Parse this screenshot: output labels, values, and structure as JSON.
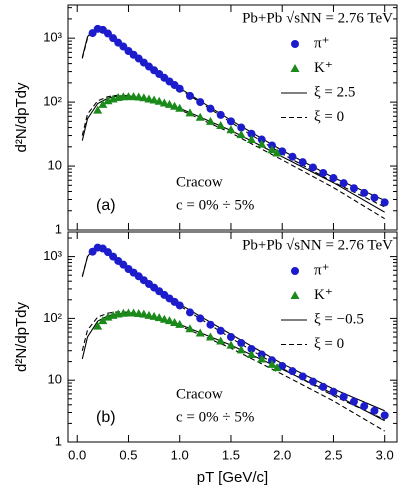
{
  "chart_data": [
    {
      "type": "scatter",
      "panel_label": "(a)",
      "y_label": "d²N/dpTdy",
      "ylog": true,
      "ylim": [
        1,
        3300
      ],
      "xlim": [
        -0.09,
        3.12
      ],
      "yticks": [
        1,
        10,
        {
          "value": 100,
          "label": "10²"
        },
        {
          "value": 1000,
          "label": "10³"
        }
      ],
      "xticks": [
        0,
        0.5,
        1,
        1.5,
        2,
        2.5,
        3
      ],
      "legend_title": "Pb+Pb √sNN = 2.76 TeV",
      "legend": "upper right",
      "annotations": [
        "Cracow",
        "c = 0% ÷ 5%"
      ],
      "series": [
        {
          "name": "π⁺",
          "marker": "circle",
          "color": "#1c1ccc",
          "x": [
            0.15,
            0.2,
            0.25,
            0.3,
            0.35,
            0.4,
            0.45,
            0.5,
            0.55,
            0.6,
            0.65,
            0.7,
            0.75,
            0.8,
            0.85,
            0.9,
            0.95,
            1.0,
            1.1,
            1.2,
            1.3,
            1.4,
            1.5,
            1.6,
            1.7,
            1.8,
            1.9,
            2.0,
            2.1,
            2.2,
            2.3,
            2.4,
            2.5,
            2.6,
            2.7,
            2.8,
            2.9,
            3.0
          ],
          "values": [
            1200,
            1400,
            1350,
            1180,
            1000,
            850,
            740,
            630,
            550,
            480,
            415,
            360,
            315,
            275,
            240,
            210,
            185,
            162,
            125,
            100,
            79,
            63,
            50,
            40,
            32,
            26,
            21,
            17,
            14,
            11.5,
            9.5,
            7.8,
            6.5,
            5.4,
            4.5,
            3.8,
            3.2,
            2.7
          ]
        },
        {
          "name": "K⁺",
          "marker": "triangle",
          "color": "#1a8a1a",
          "x": [
            0.2,
            0.25,
            0.3,
            0.35,
            0.4,
            0.45,
            0.5,
            0.55,
            0.6,
            0.65,
            0.7,
            0.75,
            0.8,
            0.85,
            0.9,
            0.95,
            1.0,
            1.1,
            1.2,
            1.3,
            1.4,
            1.5,
            1.6,
            1.7,
            1.8,
            1.9,
            1.95
          ],
          "values": [
            75,
            92,
            105,
            112,
            118,
            121,
            122,
            122,
            120,
            117,
            112,
            108,
            103,
            97,
            92,
            86,
            80,
            68,
            58,
            50,
            43,
            37,
            31,
            26,
            22,
            18,
            16
          ]
        },
        {
          "name": "ξ = 2.5",
          "line_style": "solid",
          "color": "#000000",
          "x": [
            0.05,
            0.1,
            0.15,
            0.2,
            0.3,
            0.4,
            0.5,
            0.7,
            1,
            1.5,
            2,
            2.5,
            3
          ],
          "values": [
            500,
            1050,
            1300,
            1380,
            1180,
            860,
            640,
            370,
            165,
            52,
            17.5,
            6.6,
            2.9
          ]
        },
        {
          "line_style": "solid",
          "color": "#000000",
          "x": [
            0.05,
            0.1,
            0.2,
            0.3,
            0.4,
            0.5,
            0.7,
            1,
            1.5,
            2,
            2.5,
            3
          ],
          "values": [
            25,
            55,
            95,
            115,
            125,
            125,
            110,
            80,
            36,
            14,
            5.5,
            1.9
          ]
        },
        {
          "name": "ξ = 0",
          "line_style": "dashed",
          "color": "#000000",
          "x": [
            0.05,
            0.1,
            0.15,
            0.2,
            0.3,
            0.4,
            0.5,
            0.7,
            1,
            1.5,
            2,
            2.5,
            3
          ],
          "values": [
            480,
            1000,
            1280,
            1370,
            1180,
            860,
            640,
            365,
            160,
            48,
            15.5,
            5.6,
            2.3
          ]
        },
        {
          "line_style": "dashed",
          "color": "#000000",
          "x": [
            0.05,
            0.1,
            0.2,
            0.3,
            0.4,
            0.5,
            0.7,
            1,
            1.5,
            2,
            2.5,
            3
          ],
          "values": [
            30,
            65,
            105,
            122,
            128,
            126,
            108,
            76,
            33,
            12.5,
            4.6,
            1.5
          ]
        }
      ]
    },
    {
      "type": "scatter",
      "panel_label": "(b)",
      "y_label": "d²N/dpTdy",
      "x_label": "pT [GeV/c]",
      "ylog": true,
      "ylim": [
        1,
        2500
      ],
      "xlim": [
        -0.09,
        3.12
      ],
      "yticks": [
        1,
        10,
        {
          "value": 100,
          "label": "10²"
        },
        {
          "value": 1000,
          "label": "10³"
        }
      ],
      "xticks": [
        {
          "value": 0,
          "label": "0.0"
        },
        0.5,
        {
          "value": 1,
          "label": "1.0"
        },
        1.5,
        {
          "value": 2,
          "label": "2.0"
        },
        2.5,
        {
          "value": 3,
          "label": "3.0"
        }
      ],
      "legend_title": "Pb+Pb √sNN = 2.76 TeV",
      "legend": "upper right",
      "annotations": [
        "Cracow",
        "c = 0% ÷ 5%"
      ],
      "series": [
        {
          "name": "π⁺",
          "marker": "circle",
          "color": "#1c1ccc",
          "x": [
            0.15,
            0.2,
            0.25,
            0.3,
            0.35,
            0.4,
            0.45,
            0.5,
            0.55,
            0.6,
            0.65,
            0.7,
            0.75,
            0.8,
            0.85,
            0.9,
            0.95,
            1.0,
            1.1,
            1.2,
            1.3,
            1.4,
            1.5,
            1.6,
            1.7,
            1.8,
            1.9,
            2.0,
            2.1,
            2.2,
            2.3,
            2.4,
            2.5,
            2.6,
            2.7,
            2.8,
            2.9,
            3.0
          ],
          "values": [
            1200,
            1400,
            1350,
            1180,
            1000,
            850,
            740,
            630,
            550,
            480,
            415,
            360,
            315,
            275,
            240,
            210,
            185,
            162,
            125,
            100,
            79,
            63,
            50,
            40,
            32,
            26,
            21,
            17,
            14,
            11.5,
            9.5,
            7.8,
            6.5,
            5.4,
            4.5,
            3.8,
            3.2,
            2.7
          ]
        },
        {
          "name": "K⁺",
          "marker": "triangle",
          "color": "#1a8a1a",
          "x": [
            0.2,
            0.25,
            0.3,
            0.35,
            0.4,
            0.45,
            0.5,
            0.55,
            0.6,
            0.65,
            0.7,
            0.75,
            0.8,
            0.85,
            0.9,
            0.95,
            1.0,
            1.1,
            1.2,
            1.3,
            1.4,
            1.5,
            1.6,
            1.7,
            1.8,
            1.9,
            1.95
          ],
          "values": [
            75,
            92,
            105,
            112,
            118,
            121,
            122,
            122,
            120,
            117,
            112,
            108,
            103,
            97,
            92,
            86,
            80,
            68,
            58,
            50,
            43,
            37,
            31,
            26,
            22,
            18,
            16
          ]
        },
        {
          "name": "ξ = −0.5",
          "line_style": "solid",
          "color": "#000000",
          "x": [
            0.05,
            0.1,
            0.15,
            0.2,
            0.3,
            0.4,
            0.5,
            0.7,
            1,
            1.5,
            2,
            2.5,
            3
          ],
          "values": [
            470,
            1000,
            1270,
            1360,
            1180,
            870,
            650,
            380,
            170,
            55,
            18.5,
            7.2,
            3.2
          ]
        },
        {
          "line_style": "solid",
          "color": "#000000",
          "x": [
            0.05,
            0.1,
            0.2,
            0.3,
            0.4,
            0.5,
            0.7,
            1,
            1.5,
            2,
            2.5,
            3
          ],
          "values": [
            22,
            50,
            90,
            110,
            120,
            122,
            108,
            80,
            37,
            15,
            6,
            2.2
          ]
        },
        {
          "name": "ξ = 0",
          "line_style": "dashed",
          "color": "#000000",
          "x": [
            0.05,
            0.1,
            0.15,
            0.2,
            0.3,
            0.4,
            0.5,
            0.7,
            1,
            1.5,
            2,
            2.5,
            3
          ],
          "values": [
            480,
            1000,
            1280,
            1370,
            1180,
            860,
            640,
            365,
            160,
            48,
            15.5,
            5.6,
            2.3
          ]
        },
        {
          "line_style": "dashed",
          "color": "#000000",
          "x": [
            0.05,
            0.1,
            0.2,
            0.3,
            0.4,
            0.5,
            0.7,
            1,
            1.5,
            2,
            2.5,
            3
          ],
          "values": [
            30,
            65,
            105,
            122,
            128,
            126,
            108,
            76,
            33,
            12.5,
            4.6,
            1.5
          ]
        }
      ]
    }
  ]
}
